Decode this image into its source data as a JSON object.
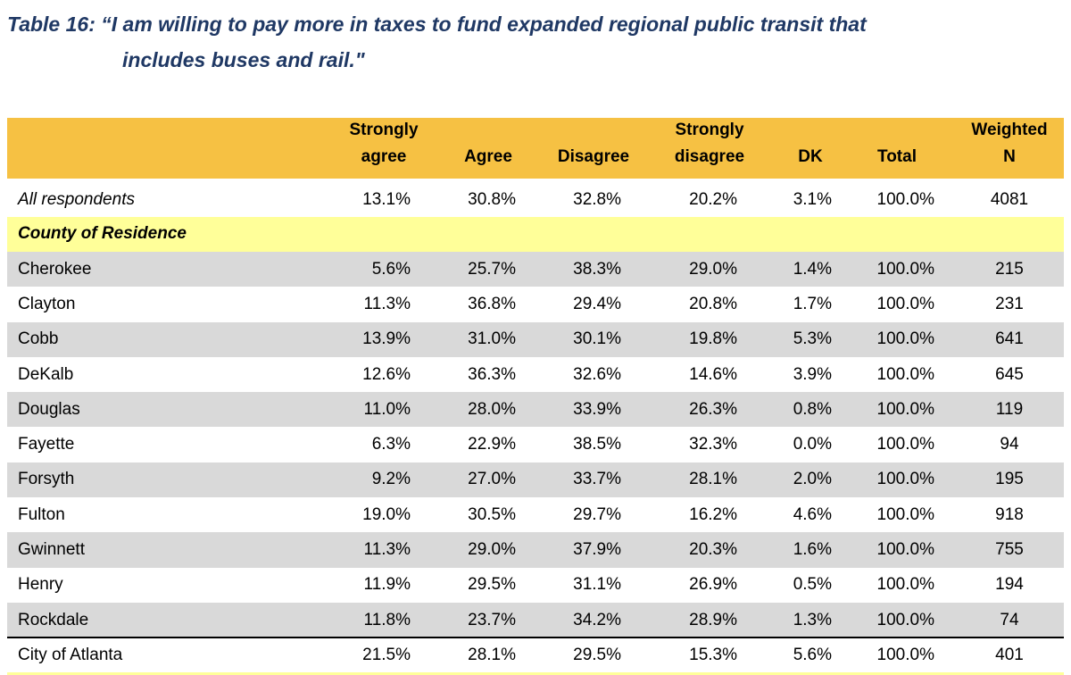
{
  "title": [
    "Table 16: “I am willing to pay more in taxes to fund expanded regional public transit that",
    "includes buses and rail.\""
  ],
  "table": {
    "headers": [
      [
        "Strongly",
        "agree"
      ],
      [
        "Agree"
      ],
      [
        "Disagree"
      ],
      [
        "Strongly",
        "disagree"
      ],
      [
        "DK"
      ],
      [
        "Total"
      ],
      [
        "Weighted",
        "N"
      ]
    ],
    "all_respondents": {
      "label": "All respondents",
      "values": [
        "13.1%",
        "30.8%",
        "32.8%",
        "20.2%",
        "3.1%",
        "100.0%",
        "4081"
      ]
    },
    "section_heading": "County of Residence",
    "counties": [
      {
        "label": "Cherokee",
        "values": [
          "5.6%",
          "25.7%",
          "38.3%",
          "29.0%",
          "1.4%",
          "100.0%",
          "215"
        ]
      },
      {
        "label": "Clayton",
        "values": [
          "11.3%",
          "36.8%",
          "29.4%",
          "20.8%",
          "1.7%",
          "100.0%",
          "231"
        ]
      },
      {
        "label": "Cobb",
        "values": [
          "13.9%",
          "31.0%",
          "30.1%",
          "19.8%",
          "5.3%",
          "100.0%",
          "641"
        ]
      },
      {
        "label": "DeKalb",
        "values": [
          "12.6%",
          "36.3%",
          "32.6%",
          "14.6%",
          "3.9%",
          "100.0%",
          "645"
        ]
      },
      {
        "label": "Douglas",
        "values": [
          "11.0%",
          "28.0%",
          "33.9%",
          "26.3%",
          "0.8%",
          "100.0%",
          "119"
        ]
      },
      {
        "label": "Fayette",
        "values": [
          "6.3%",
          "22.9%",
          "38.5%",
          "32.3%",
          "0.0%",
          "100.0%",
          "94"
        ]
      },
      {
        "label": "Forsyth",
        "values": [
          "9.2%",
          "27.0%",
          "33.7%",
          "28.1%",
          "2.0%",
          "100.0%",
          "195"
        ]
      },
      {
        "label": "Fulton",
        "values": [
          "19.0%",
          "30.5%",
          "29.7%",
          "16.2%",
          "4.6%",
          "100.0%",
          "918"
        ]
      },
      {
        "label": "Gwinnett",
        "values": [
          "11.3%",
          "29.0%",
          "37.9%",
          "20.3%",
          "1.6%",
          "100.0%",
          "755"
        ]
      },
      {
        "label": "Henry",
        "values": [
          "11.9%",
          "29.5%",
          "31.1%",
          "26.9%",
          "0.5%",
          "100.0%",
          "194"
        ]
      },
      {
        "label": "Rockdale",
        "values": [
          "11.8%",
          "23.7%",
          "34.2%",
          "28.9%",
          "1.3%",
          "100.0%",
          "74"
        ]
      }
    ],
    "city": {
      "label": "City of Atlanta",
      "values": [
        "21.5%",
        "28.1%",
        "29.5%",
        "15.3%",
        "5.6%",
        "100.0%",
        "401"
      ]
    }
  }
}
